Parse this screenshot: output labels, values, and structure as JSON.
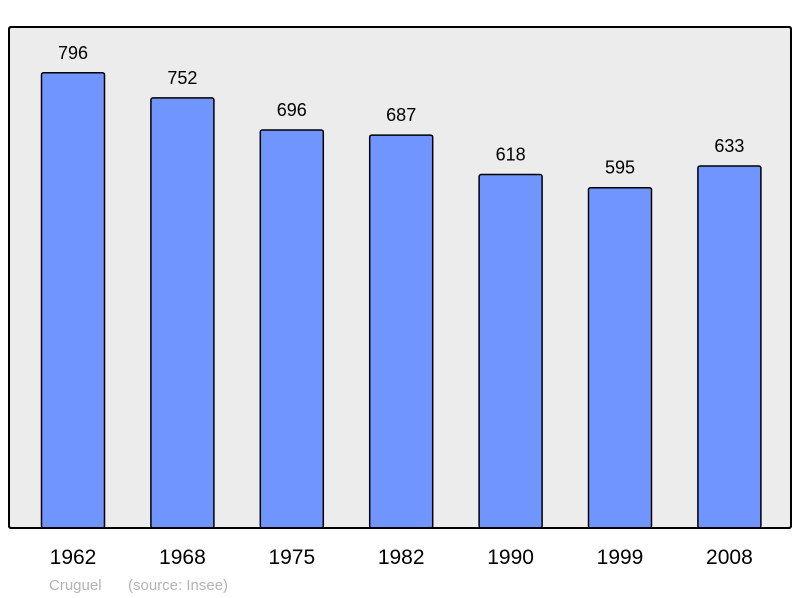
{
  "chart_data": {
    "type": "bar",
    "categories": [
      "1962",
      "1968",
      "1975",
      "1982",
      "1990",
      "1999",
      "2008"
    ],
    "values": [
      796,
      752,
      696,
      687,
      618,
      595,
      633
    ],
    "title": "",
    "xlabel": "",
    "ylabel": "",
    "ylim": [
      0,
      876
    ],
    "grid": false,
    "data_labels": true,
    "colors": {
      "bar": "#7095ff",
      "plot_bg": "#ececec",
      "border": "#000000"
    }
  },
  "footer": {
    "place": "Cruguel",
    "source": "(source: Insee)"
  }
}
